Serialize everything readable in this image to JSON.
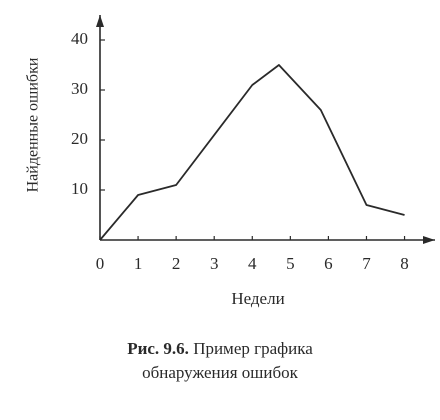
{
  "chart_data": {
    "type": "line",
    "x_label": "Недели",
    "y_label": "Найденные ошибки",
    "x": [
      0,
      1,
      2,
      4,
      4.7,
      5.8,
      7,
      8
    ],
    "series": [
      {
        "color": "#2a2a2a",
        "values": [
          0,
          9,
          11,
          31,
          35,
          26,
          7,
          5
        ]
      }
    ],
    "xlim": [
      0,
      8.8
    ],
    "ylim": [
      0,
      45
    ],
    "xticks": [
      0,
      1,
      2,
      3,
      4,
      5,
      6,
      7,
      8
    ],
    "yticks": [
      10,
      20,
      30,
      40
    ],
    "figure_number": "Рис. 9.6.",
    "caption": [
      "Пример графика",
      "обнаружения ошибок"
    ]
  }
}
